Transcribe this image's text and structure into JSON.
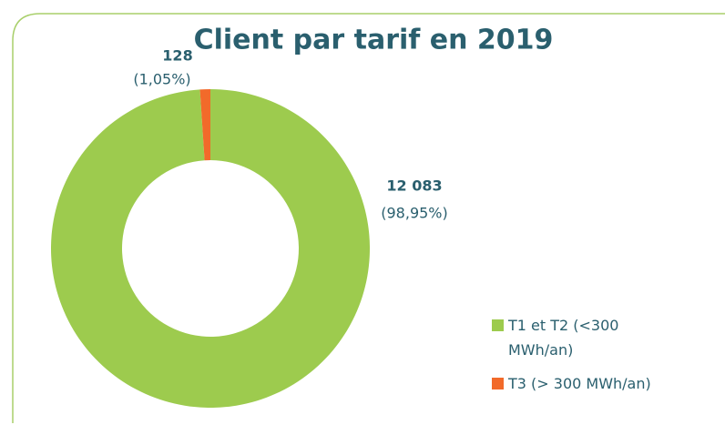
{
  "chart_data": {
    "type": "donut",
    "title": "Client par tarif en 2019",
    "categories": [
      "T1 et T2 (<300 MWh/an)",
      "T3 (> 300 MWh/an)"
    ],
    "values": [
      12083,
      128
    ],
    "value_labels": [
      "12 083",
      "128"
    ],
    "percent_labels": [
      "(98,95%)",
      "(1,05%)"
    ],
    "colors": [
      "#9dcb4e",
      "#f26a2a"
    ],
    "legend": "right"
  }
}
